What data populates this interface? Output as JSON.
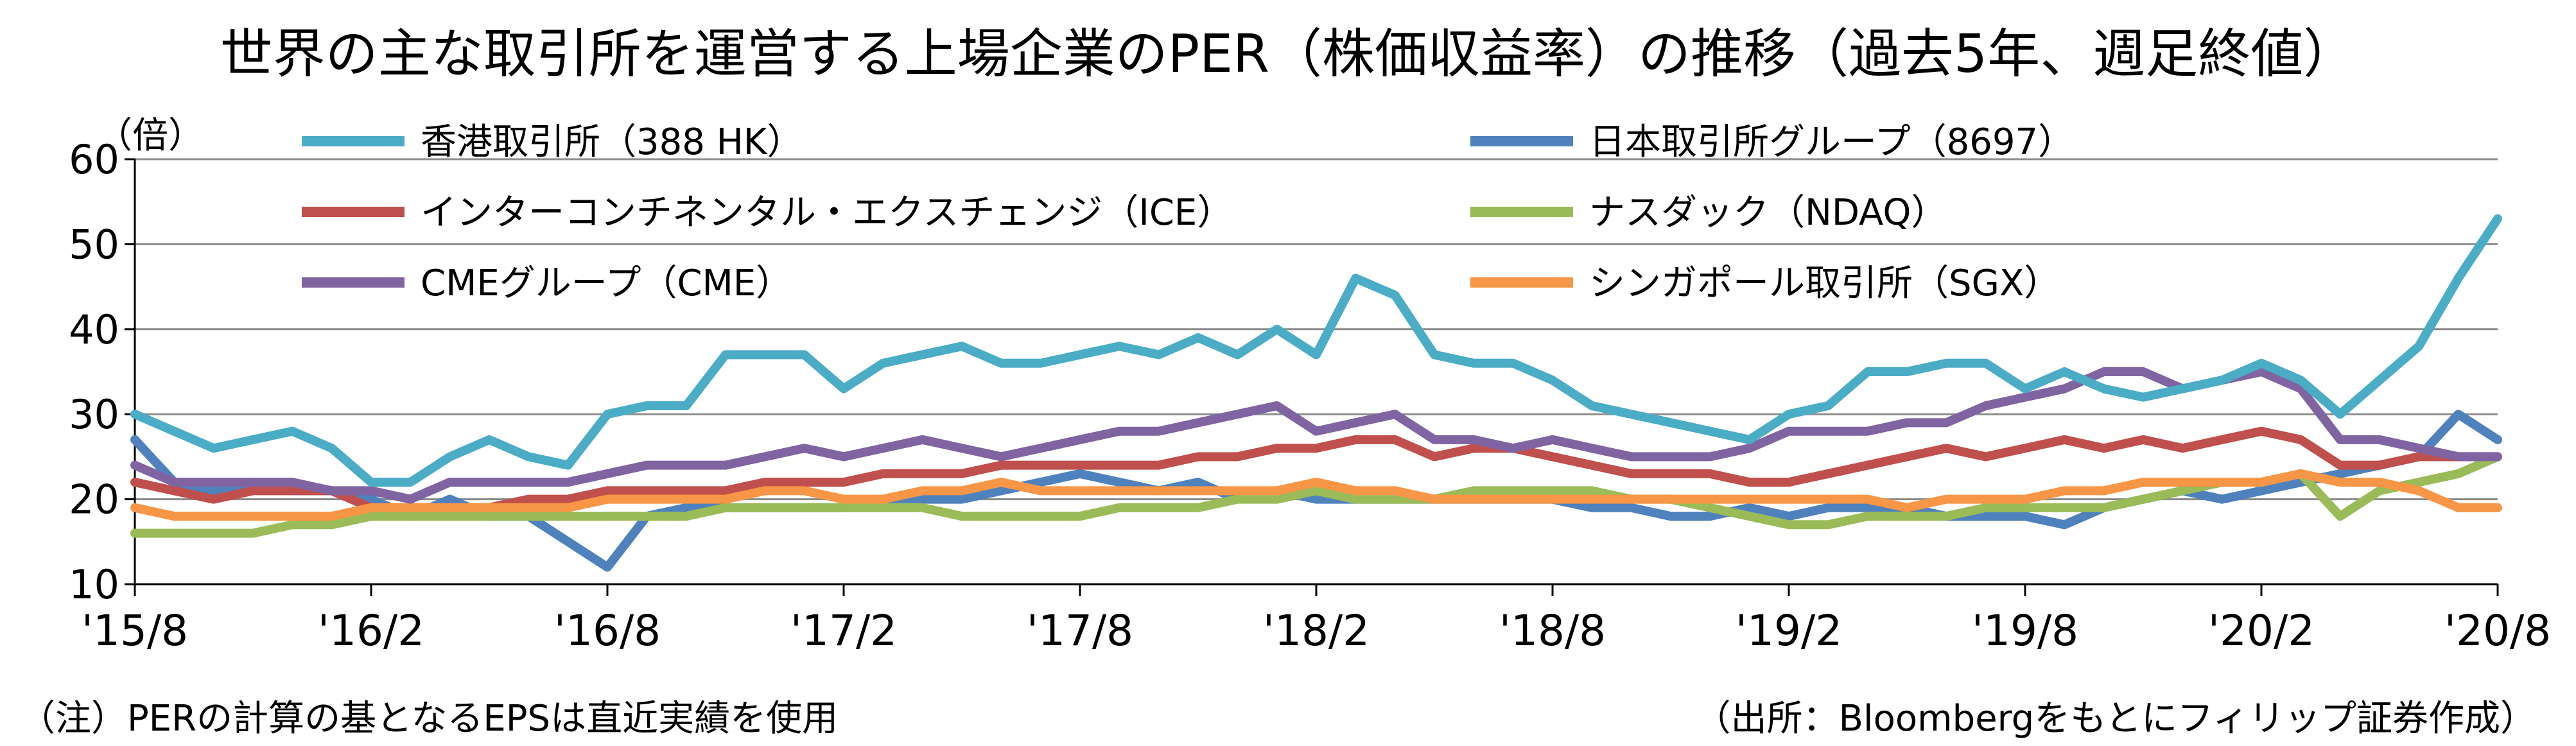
{
  "chart_data": {
    "type": "line",
    "title": "世界の主な取引所を運営する上場企業のPER（株価収益率）の推移（過去5年、週足終値）",
    "y_unit": "（倍）",
    "ylim": [
      10,
      60
    ],
    "yticks": [
      10,
      20,
      30,
      40,
      50,
      60
    ],
    "xlim": [
      "2015-08",
      "2020-08"
    ],
    "x_tick_labels": [
      "'15/8",
      "'16/2",
      "'16/8",
      "'17/2",
      "'17/8",
      "'18/2",
      "'18/8",
      "'19/2",
      "'19/8",
      "'20/2",
      "'20/8"
    ],
    "grid": "horizontal",
    "legend_position": "top, inside plot area (3 rows × 2 columns)",
    "note": "（注）PERの計算の基となるEPSは直近実績を使用",
    "source": "（出所：Bloombergをもとにフィリップ証券作成）",
    "x": [
      "2015-08",
      "2015-09",
      "2015-10",
      "2015-11",
      "2015-12",
      "2016-01",
      "2016-02",
      "2016-03",
      "2016-04",
      "2016-05",
      "2016-06",
      "2016-07",
      "2016-08",
      "2016-09",
      "2016-10",
      "2016-11",
      "2016-12",
      "2017-01",
      "2017-02",
      "2017-03",
      "2017-04",
      "2017-05",
      "2017-06",
      "2017-07",
      "2017-08",
      "2017-09",
      "2017-10",
      "2017-11",
      "2017-12",
      "2018-01",
      "2018-02",
      "2018-03",
      "2018-04",
      "2018-05",
      "2018-06",
      "2018-07",
      "2018-08",
      "2018-09",
      "2018-10",
      "2018-11",
      "2018-12",
      "2019-01",
      "2019-02",
      "2019-03",
      "2019-04",
      "2019-05",
      "2019-06",
      "2019-07",
      "2019-08",
      "2019-09",
      "2019-10",
      "2019-11",
      "2019-12",
      "2020-01",
      "2020-02",
      "2020-03",
      "2020-04",
      "2020-05",
      "2020-06",
      "2020-07",
      "2020-08"
    ],
    "series": [
      {
        "name": "香港取引所（388 HK）",
        "color": "#4bacc6",
        "values": [
          30,
          28,
          26,
          27,
          28,
          26,
          22,
          22,
          25,
          27,
          25,
          24,
          30,
          31,
          31,
          37,
          37,
          37,
          33,
          36,
          37,
          38,
          36,
          36,
          37,
          38,
          37,
          39,
          37,
          40,
          37,
          46,
          44,
          37,
          36,
          36,
          34,
          31,
          30,
          29,
          28,
          27,
          30,
          31,
          35,
          35,
          36,
          36,
          33,
          35,
          33,
          32,
          33,
          34,
          36,
          34,
          30,
          34,
          38,
          46,
          53
        ]
      },
      {
        "name": "日本取引所グループ（8697）",
        "color": "#4f81bd",
        "values": [
          27,
          22,
          21,
          22,
          21,
          21,
          20,
          18,
          20,
          18,
          18,
          15,
          12,
          18,
          19,
          19,
          19,
          19,
          19,
          20,
          20,
          20,
          21,
          22,
          23,
          22,
          21,
          22,
          20,
          21,
          20,
          20,
          20,
          20,
          20,
          20,
          20,
          19,
          19,
          18,
          18,
          19,
          18,
          19,
          19,
          19,
          18,
          18,
          18,
          17,
          19,
          20,
          21,
          20,
          21,
          22,
          23,
          24,
          25,
          30,
          27
        ]
      },
      {
        "name": "インターコンチネンタル・エクスチェンジ（ICE）",
        "color": "#c0504d",
        "values": [
          22,
          21,
          20,
          21,
          21,
          21,
          19,
          19,
          19,
          19,
          20,
          20,
          21,
          21,
          21,
          21,
          22,
          22,
          22,
          23,
          23,
          23,
          24,
          24,
          24,
          24,
          24,
          25,
          25,
          26,
          26,
          27,
          27,
          25,
          26,
          26,
          25,
          24,
          23,
          23,
          23,
          22,
          22,
          23,
          24,
          25,
          26,
          25,
          26,
          27,
          26,
          27,
          26,
          27,
          28,
          27,
          24,
          24,
          25,
          25,
          25
        ]
      },
      {
        "name": "ナスダック（NDAQ）",
        "color": "#9bbb59",
        "values": [
          16,
          16,
          16,
          16,
          17,
          17,
          18,
          18,
          18,
          18,
          18,
          18,
          18,
          18,
          18,
          19,
          19,
          19,
          19,
          19,
          19,
          18,
          18,
          18,
          18,
          19,
          19,
          19,
          20,
          20,
          21,
          20,
          20,
          20,
          21,
          21,
          21,
          21,
          20,
          20,
          19,
          18,
          17,
          17,
          18,
          18,
          18,
          19,
          19,
          19,
          19,
          20,
          21,
          22,
          22,
          23,
          18,
          21,
          22,
          23,
          25
        ]
      },
      {
        "name": "CMEグループ（CME）",
        "color": "#8064a2",
        "values": [
          24,
          22,
          22,
          22,
          22,
          21,
          21,
          20,
          22,
          22,
          22,
          22,
          23,
          24,
          24,
          24,
          25,
          26,
          25,
          26,
          27,
          26,
          25,
          26,
          27,
          28,
          28,
          29,
          30,
          31,
          28,
          29,
          30,
          27,
          27,
          26,
          27,
          26,
          25,
          25,
          25,
          26,
          28,
          28,
          28,
          29,
          29,
          31,
          32,
          33,
          35,
          35,
          33,
          34,
          35,
          33,
          27,
          27,
          26,
          25,
          25
        ]
      },
      {
        "name": "シンガポール取引所（SGX）",
        "color": "#f79646",
        "values": [
          19,
          18,
          18,
          18,
          18,
          18,
          19,
          19,
          19,
          19,
          19,
          19,
          20,
          20,
          20,
          20,
          21,
          21,
          20,
          20,
          21,
          21,
          22,
          21,
          21,
          21,
          21,
          21,
          21,
          21,
          22,
          21,
          21,
          20,
          20,
          20,
          20,
          20,
          20,
          20,
          20,
          20,
          20,
          20,
          20,
          19,
          20,
          20,
          20,
          21,
          21,
          22,
          22,
          22,
          22,
          23,
          22,
          22,
          21,
          19,
          19
        ]
      }
    ]
  }
}
